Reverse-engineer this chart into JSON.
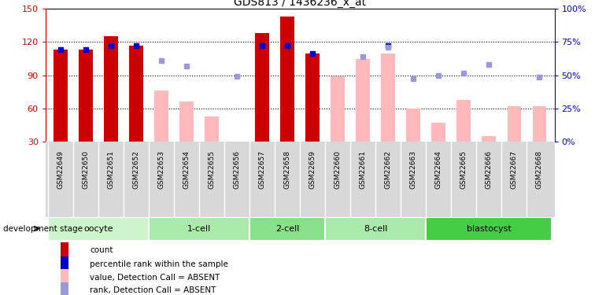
{
  "title": "GDS813 / 1436236_x_at",
  "samples": [
    "GSM22649",
    "GSM22650",
    "GSM22651",
    "GSM22652",
    "GSM22653",
    "GSM22654",
    "GSM22655",
    "GSM22656",
    "GSM22657",
    "GSM22658",
    "GSM22659",
    "GSM22660",
    "GSM22661",
    "GSM22662",
    "GSM22663",
    "GSM22664",
    "GSM22665",
    "GSM22666",
    "GSM22667",
    "GSM22668"
  ],
  "red_bars": [
    113,
    113,
    125,
    117,
    null,
    null,
    null,
    null,
    128,
    143,
    110,
    null,
    null,
    null,
    null,
    null,
    null,
    null,
    null,
    null
  ],
  "pink_bars": [
    null,
    null,
    null,
    null,
    76,
    66,
    53,
    null,
    null,
    null,
    null,
    89,
    105,
    110,
    60,
    47,
    68,
    35,
    62,
    62
  ],
  "blue_squares": [
    113,
    113,
    117,
    117,
    null,
    null,
    null,
    null,
    117,
    117,
    110,
    null,
    null,
    117,
    null,
    null,
    null,
    null,
    null,
    null
  ],
  "light_blue_squares": [
    null,
    null,
    null,
    null,
    103,
    98,
    null,
    89,
    null,
    null,
    null,
    null,
    107,
    115,
    87,
    90,
    92,
    100,
    null,
    88
  ],
  "groups": [
    {
      "label": "oocyte",
      "start": 0,
      "end": 3,
      "color": "#ccf5cc"
    },
    {
      "label": "1-cell",
      "start": 4,
      "end": 7,
      "color": "#aaeaaa"
    },
    {
      "label": "2-cell",
      "start": 8,
      "end": 10,
      "color": "#88e088"
    },
    {
      "label": "8-cell",
      "start": 11,
      "end": 14,
      "color": "#aaeaaa"
    },
    {
      "label": "blastocyst",
      "start": 15,
      "end": 19,
      "color": "#44cc44"
    }
  ],
  "ylim_left": [
    30,
    150
  ],
  "ylim_right": [
    0,
    100
  ],
  "yticks_left": [
    30,
    60,
    90,
    120,
    150
  ],
  "yticks_right": [
    0,
    25,
    50,
    75,
    100
  ],
  "red_color": "#cc0000",
  "pink_color": "#ffbbbb",
  "blue_color": "#0000cc",
  "light_blue_color": "#9999dd",
  "bar_width": 0.55
}
